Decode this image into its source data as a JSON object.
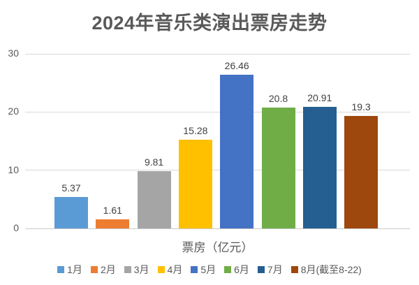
{
  "chart_data": {
    "type": "bar",
    "title": "2024年音乐类演出票房走势",
    "xlabel": "票房（亿元）",
    "ylabel": "",
    "categories": [
      "1月",
      "2月",
      "3月",
      "4月",
      "5月",
      "6月",
      "7月",
      "8月(截至8-22)"
    ],
    "values": [
      5.37,
      1.61,
      9.81,
      15.28,
      26.46,
      20.8,
      20.91,
      19.3
    ],
    "value_labels": [
      "5.37",
      "1.61",
      "9.81",
      "15.28",
      "26.46",
      "20.8",
      "20.91",
      "19.3"
    ],
    "colors": [
      "#5B9BD5",
      "#ED7D31",
      "#A5A5A5",
      "#FFC000",
      "#4472C4",
      "#70AD47",
      "#255E91",
      "#9E480E"
    ],
    "ylim": [
      0,
      30
    ],
    "yticks": [
      0,
      10,
      20,
      30
    ],
    "grid": true,
    "gridline_color": "#D9D9D9",
    "baseline_color": "#C9C9C9",
    "title_color": "#595959",
    "axis_text_color": "#595959",
    "data_label_color": "#404040",
    "legend_position": "bottom"
  }
}
